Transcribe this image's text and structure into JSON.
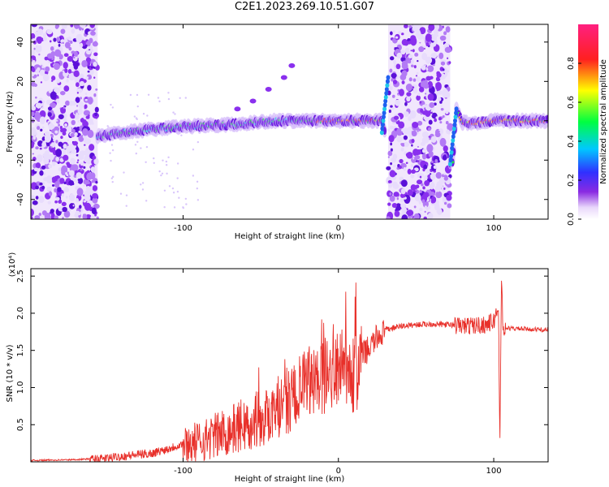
{
  "title": "C2E1.2023.269.10.51.G07",
  "chart_data": [
    {
      "type": "heatmap",
      "xlabel": "Height of straight line (km)",
      "ylabel": "Frequency (Hz)",
      "xlim": [
        -198,
        135
      ],
      "ylim": [
        -50,
        49
      ],
      "xticks": [
        -100,
        0,
        100
      ],
      "yticks": [
        -40,
        -20,
        0,
        20,
        40
      ],
      "colorbar": {
        "label": "Normalized spectral amplitude",
        "range": [
          0.0,
          1.0
        ],
        "ticks": [
          0.0,
          0.2,
          0.4,
          0.6,
          0.8
        ],
        "colormap": "rainbow (white-violet-blue-cyan-green-yellow-red-pink)"
      },
      "noise_regions_km": [
        [
          -198,
          -155
        ],
        [
          32,
          72
        ]
      ],
      "trace": {
        "description": "main spectral ridge",
        "x": [
          -155,
          -130,
          -100,
          -70,
          -40,
          -20,
          0,
          20,
          28,
          30,
          32,
          72,
          74,
          76,
          80,
          90,
          100,
          110,
          135
        ],
        "y": [
          -8,
          -5,
          -3,
          -2,
          0,
          0,
          0,
          0,
          0,
          -6,
          22,
          -22,
          -20,
          6,
          -1,
          -1,
          0,
          0,
          0
        ]
      },
      "secondary_branch": {
        "x": [
          -65,
          -55,
          -45,
          -35,
          -30
        ],
        "y": [
          6,
          10,
          16,
          22,
          28
        ]
      }
    },
    {
      "type": "line",
      "xlabel": "Height of straight line (km)",
      "ylabel": "SNR (10 * v/v)",
      "y_multiplier": "(x10⁴)",
      "xlim": [
        -198,
        135
      ],
      "ylim": [
        0,
        2.6
      ],
      "xticks": [
        -100,
        0,
        100
      ],
      "yticks": [
        0.5,
        1.0,
        1.5,
        2.0,
        2.5
      ],
      "series": [
        {
          "color": "#e8302a",
          "x": [
            -198,
            -170,
            -150,
            -140,
            -130,
            -120,
            -110,
            -100,
            -90,
            -80,
            -70,
            -60,
            -50,
            -40,
            -35,
            -30,
            -25,
            -20,
            -15,
            -10,
            -5,
            0,
            5,
            10,
            11,
            12,
            13,
            15,
            20,
            25,
            30,
            40,
            50,
            60,
            70,
            80,
            90,
            95,
            100,
            103,
            104,
            105,
            106,
            108,
            110,
            120,
            135
          ],
          "y": [
            0.02,
            0.03,
            0.05,
            0.08,
            0.1,
            0.12,
            0.18,
            0.25,
            0.3,
            0.38,
            0.45,
            0.55,
            0.62,
            0.75,
            0.85,
            0.9,
            1.0,
            1.1,
            1.15,
            1.2,
            1.3,
            1.3,
            1.35,
            1.25,
            2.3,
            0.7,
            1.4,
            1.45,
            1.55,
            1.7,
            1.78,
            1.83,
            1.85,
            1.86,
            1.85,
            1.84,
            1.85,
            1.86,
            1.9,
            2.1,
            0.3,
            2.5,
            1.8,
            1.8,
            1.8,
            1.79,
            1.78
          ]
        }
      ]
    }
  ]
}
